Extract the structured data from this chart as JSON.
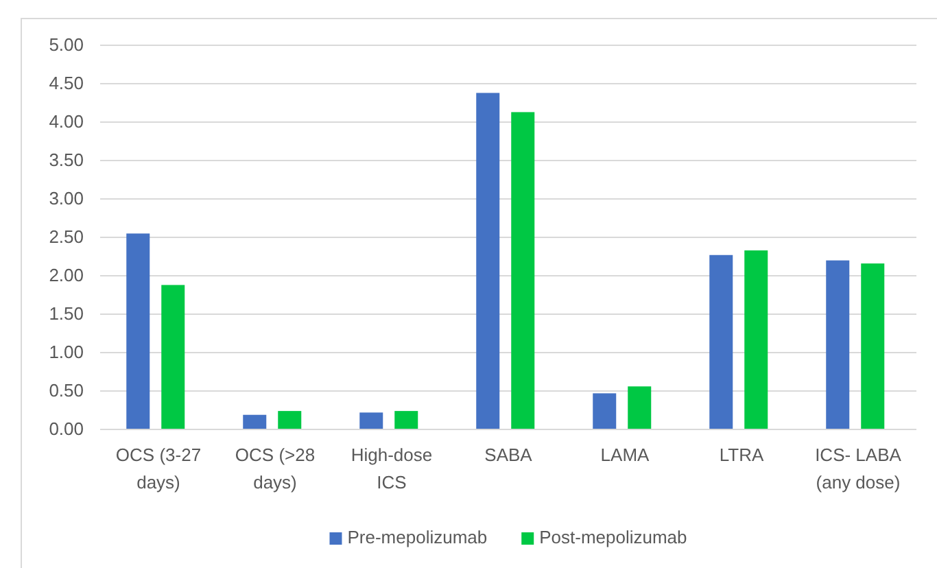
{
  "chart_data": {
    "type": "bar",
    "categories": [
      "OCS (3-27 days)",
      "OCS (>28 days)",
      "High-dose ICS",
      "SABA",
      "LAMA",
      "LTRA",
      "ICS- LABA (any dose)"
    ],
    "series": [
      {
        "name": "Pre-mepolizumab",
        "color": "#4472c4",
        "values": [
          2.55,
          0.19,
          0.22,
          4.38,
          0.47,
          2.27,
          2.2
        ]
      },
      {
        "name": "Post-mepolizumab",
        "color": "#00c844",
        "values": [
          1.88,
          0.24,
          0.24,
          4.13,
          0.56,
          2.33,
          2.16
        ]
      }
    ],
    "ylim": [
      0,
      5
    ],
    "yticks": [
      {
        "value": 0,
        "label": "0.00"
      },
      {
        "value": 0.5,
        "label": "0.50"
      },
      {
        "value": 1,
        "label": "1.00"
      },
      {
        "value": 1.5,
        "label": "1.50"
      },
      {
        "value": 2,
        "label": "2.00"
      },
      {
        "value": 2.5,
        "label": "2.50"
      },
      {
        "value": 3,
        "label": "3.00"
      },
      {
        "value": 3.5,
        "label": "3.50"
      },
      {
        "value": 4,
        "label": "4.00"
      },
      {
        "value": 4.5,
        "label": "4.50"
      },
      {
        "value": 5,
        "label": "5.00"
      }
    ],
    "grid": "y",
    "legend": "bottom"
  }
}
